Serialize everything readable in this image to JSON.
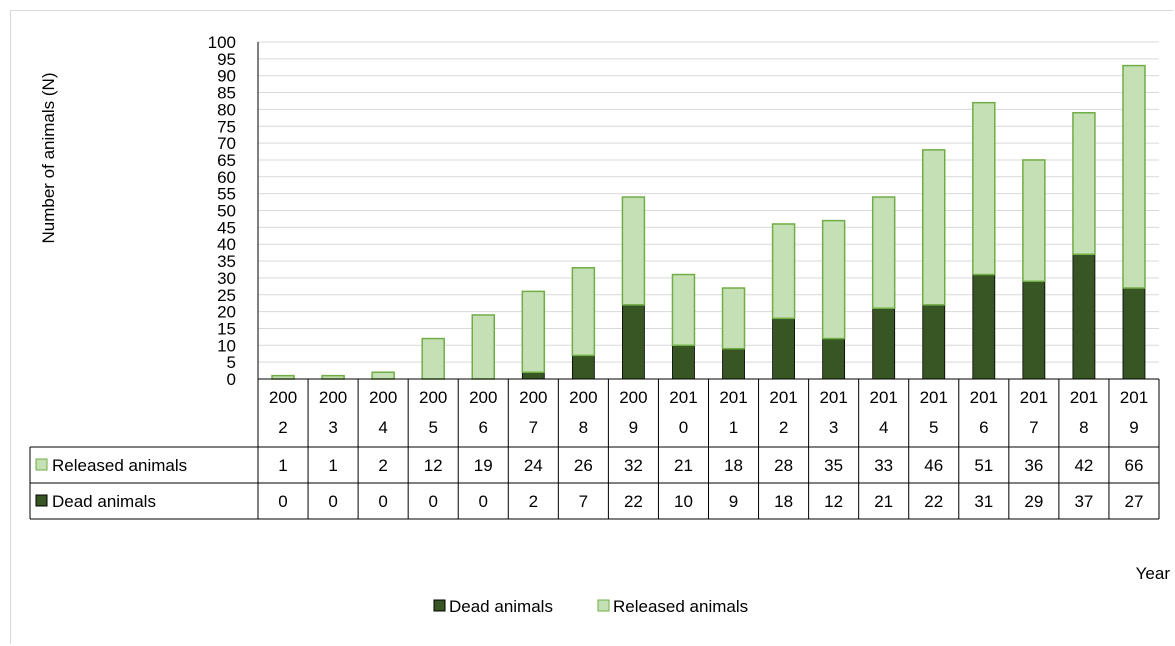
{
  "chart_data": {
    "type": "bar",
    "stacked": true,
    "categories": [
      "2002",
      "2003",
      "2004",
      "2005",
      "2006",
      "2007",
      "2008",
      "2009",
      "2010",
      "2011",
      "2012",
      "2013",
      "2014",
      "2015",
      "2016",
      "2017",
      "2018",
      "2019"
    ],
    "category_display": [
      [
        "200",
        "2"
      ],
      [
        "200",
        "3"
      ],
      [
        "200",
        "4"
      ],
      [
        "200",
        "5"
      ],
      [
        "200",
        "6"
      ],
      [
        "200",
        "7"
      ],
      [
        "200",
        "8"
      ],
      [
        "200",
        "9"
      ],
      [
        "201",
        "0"
      ],
      [
        "201",
        "1"
      ],
      [
        "201",
        "2"
      ],
      [
        "201",
        "3"
      ],
      [
        "201",
        "4"
      ],
      [
        "201",
        "5"
      ],
      [
        "201",
        "6"
      ],
      [
        "201",
        "7"
      ],
      [
        "201",
        "8"
      ],
      [
        "201",
        "9"
      ]
    ],
    "series": [
      {
        "name": "Dead animals",
        "color": "#375623",
        "values": [
          0,
          0,
          0,
          0,
          0,
          2,
          7,
          22,
          10,
          9,
          18,
          12,
          21,
          22,
          31,
          29,
          37,
          27
        ]
      },
      {
        "name": "Released animals",
        "color": "#c5e0b4",
        "edge_color": "#70ad47",
        "values": [
          1,
          1,
          2,
          12,
          19,
          24,
          26,
          32,
          21,
          18,
          28,
          35,
          33,
          46,
          51,
          36,
          42,
          66
        ]
      }
    ],
    "table_rows": [
      "Released animals",
      "Dead animals"
    ],
    "ylabel": "Number of animals (N)",
    "xlabel": "Year",
    "ylim": [
      0,
      100
    ],
    "ytick_step": 5,
    "grid": true,
    "legend": {
      "position": "bottom",
      "entries": [
        "Dead animals",
        "Released animals"
      ]
    },
    "data_table": true
  }
}
